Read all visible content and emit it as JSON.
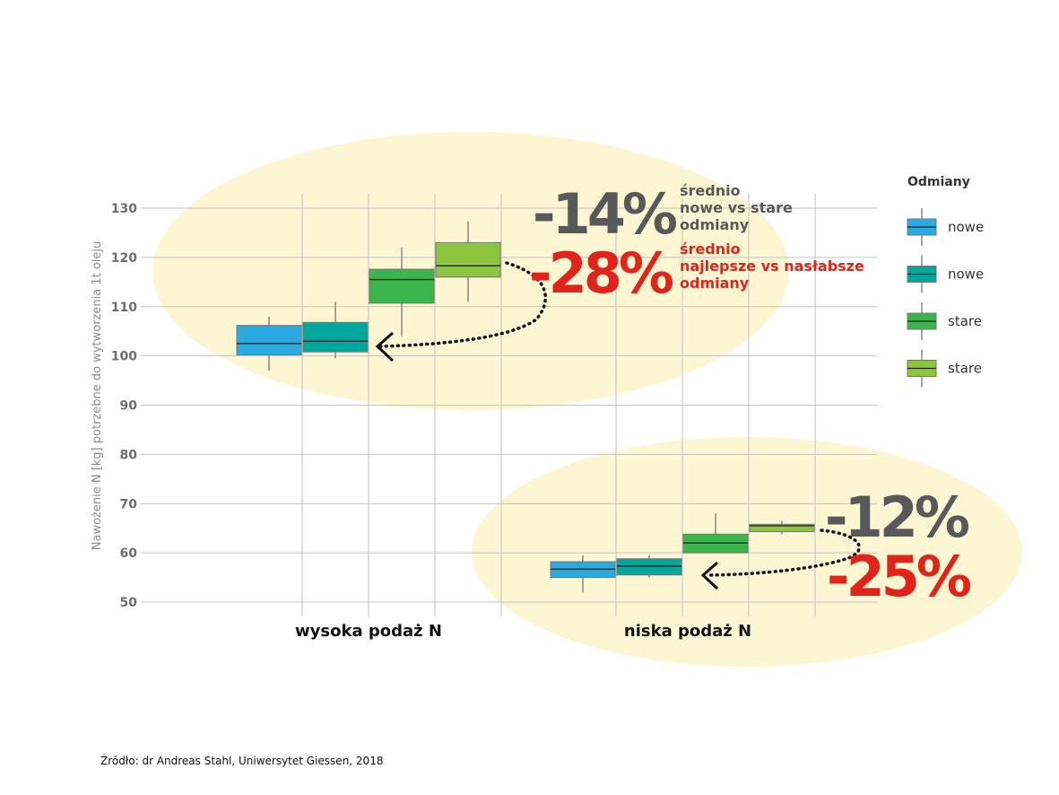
{
  "source": "Źródło: dr Andreas Stahl, Uniwersytet Giessen, 2018",
  "annotations": {
    "high": {
      "pct_avg": "-14%",
      "pct_best": "-28%",
      "avg_text": [
        "średnio",
        "nowe vs stare",
        "odmiany"
      ],
      "best_text": [
        "średnio",
        "najlepsze vs nasłabsze",
        "odmiany"
      ]
    },
    "low": {
      "pct_avg": "-12%",
      "pct_best": "-25%"
    }
  },
  "colors": {
    "ellipse": "#fdf6d2",
    "grid": "#c2c2c2",
    "avg_text": "#58595b",
    "best_text": "#e2231a"
  },
  "chart_data": {
    "type": "box",
    "title": "",
    "xlabel": "",
    "ylabel": "Nawożenie N [kg] potrzebne do wytworzenia 1t oleju",
    "ylim": [
      50,
      130
    ],
    "yticks": [
      50,
      60,
      70,
      80,
      90,
      100,
      110,
      120,
      130
    ],
    "grid": true,
    "legend": {
      "title": "Odmiany",
      "position": "right"
    },
    "categories": [
      "wysoka podaż N",
      "niska podaż N"
    ],
    "series": [
      {
        "name": "nowe",
        "color": "#29aae1",
        "boxes": [
          {
            "min": 97,
            "q1": 100.2,
            "median": 102.5,
            "q3": 106.2,
            "max": 108
          },
          {
            "min": 52,
            "q1": 55,
            "median": 56.7,
            "q3": 58.2,
            "max": 59.5
          }
        ]
      },
      {
        "name": "nowe",
        "color": "#00a79d",
        "boxes": [
          {
            "min": 99.5,
            "q1": 100.8,
            "median": 103,
            "q3": 106.8,
            "max": 111
          },
          {
            "min": 55,
            "q1": 55.5,
            "median": 57.3,
            "q3": 58.8,
            "max": 59.5
          }
        ]
      },
      {
        "name": "stare",
        "color": "#3bb44a",
        "boxes": [
          {
            "min": 104,
            "q1": 110.7,
            "median": 115.5,
            "q3": 117.6,
            "max": 122
          },
          {
            "min": 60,
            "q1": 60,
            "median": 62,
            "q3": 63.8,
            "max": 68
          }
        ]
      },
      {
        "name": "stare",
        "color": "#8cc63f",
        "boxes": [
          {
            "min": 111,
            "q1": 116,
            "median": 118.3,
            "q3": 123,
            "max": 127.3
          },
          {
            "min": 63.8,
            "q1": 64.3,
            "median": 65.5,
            "q3": 65.8,
            "max": 66.5
          }
        ]
      }
    ]
  }
}
